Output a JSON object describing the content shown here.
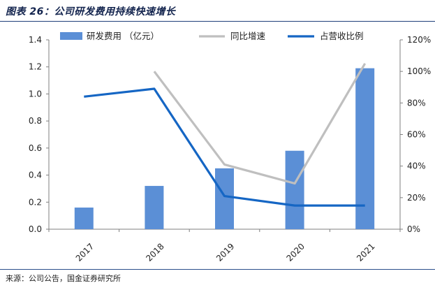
{
  "figure": {
    "title": "图表 26：公司研发费用持续快速增长",
    "source": "来源：公司公告，国金证券研究所"
  },
  "colors": {
    "bar": "#5b8fd6",
    "growth": "#bfbfbf",
    "share": "#1566c4"
  },
  "chart_data": {
    "type": "bar",
    "categories": [
      "2017",
      "2018",
      "2019",
      "2020",
      "2021"
    ],
    "series": [
      {
        "name": "研发费用 （亿元）",
        "type": "bar",
        "axis": "left",
        "values": [
          0.16,
          0.32,
          0.45,
          0.58,
          1.19
        ]
      },
      {
        "name": "同比增速",
        "type": "line",
        "axis": "right",
        "values": [
          null,
          100,
          41,
          29,
          105
        ]
      },
      {
        "name": "占营收比例",
        "type": "line",
        "axis": "right",
        "values": [
          84,
          89,
          21,
          15,
          15
        ]
      }
    ],
    "ylim": [
      0,
      1.4
    ],
    "yticks": [
      "0.0",
      "0.2",
      "0.4",
      "0.6",
      "0.8",
      "1.0",
      "1.2",
      "1.4"
    ],
    "y2lim": [
      0,
      120
    ],
    "y2ticks": [
      "0%",
      "20%",
      "40%",
      "60%",
      "80%",
      "100%",
      "120%"
    ],
    "legend_position": "top",
    "grid": false
  }
}
